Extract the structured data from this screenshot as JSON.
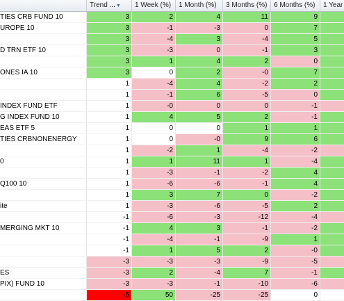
{
  "columns": [
    {
      "label": "",
      "key": "name"
    },
    {
      "label": "Trend ...",
      "key": "trend"
    },
    {
      "label": "1 Week (%)",
      "key": "w1"
    },
    {
      "label": "1 Month (%)",
      "key": "m1"
    },
    {
      "label": "3 Months (%)",
      "key": "m3"
    },
    {
      "label": "6 Months (%)",
      "key": "m6"
    },
    {
      "label": "1 Year",
      "key": "y1"
    }
  ],
  "sort_icon": "sort-descending-icon",
  "colors": {
    "positive": "#8ce178",
    "negative": "#f5bfc7",
    "neutral": "#ffffff",
    "alert": "#ff0000"
  },
  "rows": [
    {
      "name": "TIES CRB FUND 10",
      "cells": [
        {
          "v": "3",
          "c": "pos"
        },
        {
          "v": "2",
          "c": "pos"
        },
        {
          "v": "4",
          "c": "pos"
        },
        {
          "v": "11",
          "c": "pos"
        },
        {
          "v": "9",
          "c": "pos"
        },
        {
          "v": "",
          "c": "pos"
        }
      ]
    },
    {
      "name": "UROPE 10",
      "cells": [
        {
          "v": "3",
          "c": "pos"
        },
        {
          "v": "-1",
          "c": "neg"
        },
        {
          "v": "-3",
          "c": "neg"
        },
        {
          "v": "0",
          "c": "neg"
        },
        {
          "v": "7",
          "c": "pos"
        },
        {
          "v": "",
          "c": "pos"
        }
      ]
    },
    {
      "name": "",
      "cells": [
        {
          "v": "3",
          "c": "pos"
        },
        {
          "v": "-4",
          "c": "neg"
        },
        {
          "v": "3",
          "c": "pos"
        },
        {
          "v": "-4",
          "c": "neg"
        },
        {
          "v": "5",
          "c": "pos"
        },
        {
          "v": "",
          "c": "pos"
        }
      ]
    },
    {
      "name": "D TRN ETF 10",
      "cells": [
        {
          "v": "3",
          "c": "pos"
        },
        {
          "v": "-3",
          "c": "neg"
        },
        {
          "v": "0",
          "c": "neg"
        },
        {
          "v": "-1",
          "c": "neg"
        },
        {
          "v": "3",
          "c": "pos"
        },
        {
          "v": "",
          "c": "pos"
        }
      ]
    },
    {
      "name": "",
      "cells": [
        {
          "v": "3",
          "c": "pos"
        },
        {
          "v": "1",
          "c": "pos"
        },
        {
          "v": "4",
          "c": "pos"
        },
        {
          "v": "2",
          "c": "pos"
        },
        {
          "v": "0",
          "c": "neg"
        },
        {
          "v": "",
          "c": "pos"
        }
      ]
    },
    {
      "name": "ONES IA 10",
      "cells": [
        {
          "v": "3",
          "c": "pos"
        },
        {
          "v": "0",
          "c": "zero"
        },
        {
          "v": "2",
          "c": "pos"
        },
        {
          "v": "-0",
          "c": "neg"
        },
        {
          "v": "7",
          "c": "pos"
        },
        {
          "v": "",
          "c": "pos"
        }
      ]
    },
    {
      "name": "",
      "cells": [
        {
          "v": "1",
          "c": "zero"
        },
        {
          "v": "-4",
          "c": "neg"
        },
        {
          "v": "4",
          "c": "pos"
        },
        {
          "v": "-2",
          "c": "neg"
        },
        {
          "v": "2",
          "c": "pos"
        },
        {
          "v": "",
          "c": "pos"
        }
      ]
    },
    {
      "name": "",
      "cells": [
        {
          "v": "1",
          "c": "zero"
        },
        {
          "v": "-1",
          "c": "neg"
        },
        {
          "v": "6",
          "c": "pos"
        },
        {
          "v": "-5",
          "c": "neg"
        },
        {
          "v": "0",
          "c": "neg"
        },
        {
          "v": "",
          "c": "pos"
        }
      ]
    },
    {
      "name": "INDEX FUND ETF",
      "cells": [
        {
          "v": "1",
          "c": "zero"
        },
        {
          "v": "-0",
          "c": "neg"
        },
        {
          "v": "0",
          "c": "neg"
        },
        {
          "v": "0",
          "c": "neg"
        },
        {
          "v": "-1",
          "c": "neg"
        },
        {
          "v": "",
          "c": "neg"
        }
      ]
    },
    {
      "name": "G INDEX FUND 10",
      "cells": [
        {
          "v": "1",
          "c": "zero"
        },
        {
          "v": "4",
          "c": "pos"
        },
        {
          "v": "5",
          "c": "pos"
        },
        {
          "v": "2",
          "c": "pos"
        },
        {
          "v": "-1",
          "c": "neg"
        },
        {
          "v": "",
          "c": "pos"
        }
      ]
    },
    {
      "name": "EAS ETF 5",
      "cells": [
        {
          "v": "1",
          "c": "zero"
        },
        {
          "v": "0",
          "c": "zero"
        },
        {
          "v": "0",
          "c": "zero"
        },
        {
          "v": "1",
          "c": "pos"
        },
        {
          "v": "1",
          "c": "pos"
        },
        {
          "v": "",
          "c": "pos"
        }
      ]
    },
    {
      "name": "TIES CRBNONENERGY",
      "cells": [
        {
          "v": "1",
          "c": "zero"
        },
        {
          "v": "0",
          "c": "zero"
        },
        {
          "v": "-0",
          "c": "neg"
        },
        {
          "v": "9",
          "c": "pos"
        },
        {
          "v": "6",
          "c": "pos"
        },
        {
          "v": "",
          "c": "pos"
        }
      ]
    },
    {
      "name": "",
      "cells": [
        {
          "v": "1",
          "c": "zero"
        },
        {
          "v": "-2",
          "c": "neg"
        },
        {
          "v": "1",
          "c": "pos"
        },
        {
          "v": "-4",
          "c": "neg"
        },
        {
          "v": "-2",
          "c": "neg"
        },
        {
          "v": "",
          "c": "neg"
        }
      ]
    },
    {
      "name": "0",
      "cells": [
        {
          "v": "1",
          "c": "zero"
        },
        {
          "v": "1",
          "c": "pos"
        },
        {
          "v": "11",
          "c": "pos"
        },
        {
          "v": "1",
          "c": "pos"
        },
        {
          "v": "-4",
          "c": "neg"
        },
        {
          "v": "",
          "c": "pos"
        }
      ]
    },
    {
      "name": "",
      "cells": [
        {
          "v": "1",
          "c": "zero"
        },
        {
          "v": "-3",
          "c": "neg"
        },
        {
          "v": "-1",
          "c": "neg"
        },
        {
          "v": "-2",
          "c": "neg"
        },
        {
          "v": "4",
          "c": "pos"
        },
        {
          "v": "",
          "c": "pos"
        }
      ]
    },
    {
      "name": "Q100 10",
      "cells": [
        {
          "v": "1",
          "c": "zero"
        },
        {
          "v": "-6",
          "c": "neg"
        },
        {
          "v": "-6",
          "c": "neg"
        },
        {
          "v": "-1",
          "c": "neg"
        },
        {
          "v": "4",
          "c": "pos"
        },
        {
          "v": "",
          "c": "pos"
        }
      ]
    },
    {
      "name": "",
      "cells": [
        {
          "v": "1",
          "c": "zero"
        },
        {
          "v": "3",
          "c": "pos"
        },
        {
          "v": "7",
          "c": "pos"
        },
        {
          "v": "0",
          "c": "pos"
        },
        {
          "v": "-2",
          "c": "neg"
        },
        {
          "v": "",
          "c": "pos"
        }
      ]
    },
    {
      "name": "ite",
      "cells": [
        {
          "v": "1",
          "c": "zero"
        },
        {
          "v": "-3",
          "c": "neg"
        },
        {
          "v": "-6",
          "c": "neg"
        },
        {
          "v": "-5",
          "c": "neg"
        },
        {
          "v": "2",
          "c": "pos"
        },
        {
          "v": "",
          "c": "pos"
        }
      ]
    },
    {
      "name": "",
      "cells": [
        {
          "v": "-1",
          "c": "zero"
        },
        {
          "v": "-6",
          "c": "neg"
        },
        {
          "v": "-3",
          "c": "neg"
        },
        {
          "v": "-12",
          "c": "neg"
        },
        {
          "v": "-4",
          "c": "neg"
        },
        {
          "v": "",
          "c": "neg"
        }
      ]
    },
    {
      "name": "MERGING MKT 10",
      "cells": [
        {
          "v": "-1",
          "c": "zero"
        },
        {
          "v": "4",
          "c": "pos"
        },
        {
          "v": "3",
          "c": "pos"
        },
        {
          "v": "-1",
          "c": "neg"
        },
        {
          "v": "-2",
          "c": "neg"
        },
        {
          "v": "",
          "c": "pos"
        }
      ]
    },
    {
      "name": "",
      "cells": [
        {
          "v": "-1",
          "c": "zero"
        },
        {
          "v": "-4",
          "c": "neg"
        },
        {
          "v": "-1",
          "c": "neg"
        },
        {
          "v": "-9",
          "c": "neg"
        },
        {
          "v": "1",
          "c": "pos"
        },
        {
          "v": "",
          "c": "pos"
        }
      ]
    },
    {
      "name": "",
      "cells": [
        {
          "v": "-1",
          "c": "zero"
        },
        {
          "v": "1",
          "c": "pos"
        },
        {
          "v": "5",
          "c": "pos"
        },
        {
          "v": "2",
          "c": "pos"
        },
        {
          "v": "-0",
          "c": "neg"
        },
        {
          "v": "",
          "c": "pos"
        }
      ]
    },
    {
      "name": "",
      "cells": [
        {
          "v": "-3",
          "c": "neg"
        },
        {
          "v": "-3",
          "c": "neg"
        },
        {
          "v": "-3",
          "c": "neg"
        },
        {
          "v": "-9",
          "c": "neg"
        },
        {
          "v": "-5",
          "c": "neg"
        },
        {
          "v": "",
          "c": "neg"
        }
      ]
    },
    {
      "name": "ES",
      "cells": [
        {
          "v": "-3",
          "c": "neg"
        },
        {
          "v": "2",
          "c": "pos"
        },
        {
          "v": "-4",
          "c": "neg"
        },
        {
          "v": "7",
          "c": "pos"
        },
        {
          "v": "-1",
          "c": "neg"
        },
        {
          "v": "",
          "c": "pos"
        }
      ]
    },
    {
      "name": "PIX) FUND 10",
      "cells": [
        {
          "v": "-3",
          "c": "neg"
        },
        {
          "v": "-3",
          "c": "neg"
        },
        {
          "v": "-1",
          "c": "neg"
        },
        {
          "v": "-10",
          "c": "neg"
        },
        {
          "v": "-6",
          "c": "neg"
        },
        {
          "v": "",
          "c": "neg"
        }
      ]
    },
    {
      "name": "",
      "cells": [
        {
          "v": "-5",
          "c": "red"
        },
        {
          "v": "50",
          "c": "pos"
        },
        {
          "v": "-25",
          "c": "neg"
        },
        {
          "v": "-25",
          "c": "neg"
        },
        {
          "v": "0",
          "c": "zero"
        },
        {
          "v": "",
          "c": "zero"
        }
      ]
    }
  ]
}
